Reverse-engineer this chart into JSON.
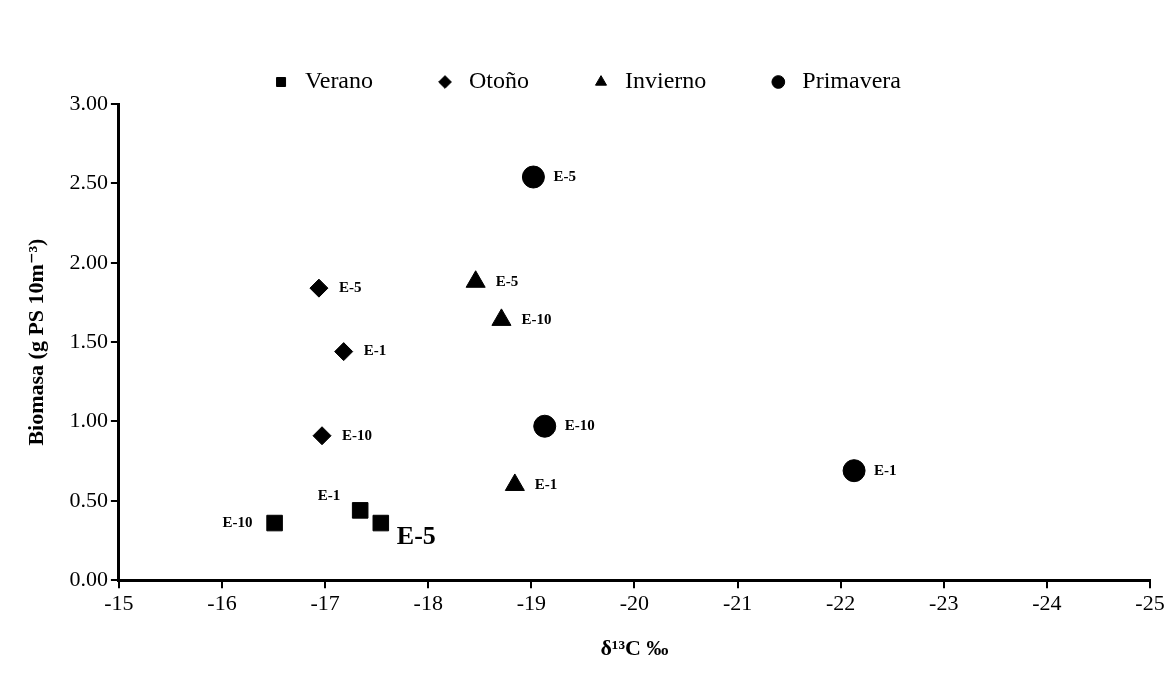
{
  "chart_data": {
    "type": "scatter",
    "xlabel": "δ¹³C ‰",
    "ylabel": "Biomasa (g PS 10m⁻³)",
    "series": [
      {
        "name": "Verano",
        "color": "#000000",
        "marker": "square",
        "x": [
          -16.51,
          -17.34,
          -17.54
        ],
        "values": [
          0.36,
          0.44,
          0.36
        ],
        "value_labels": [
          "E-10",
          "E-1",
          "E-5"
        ]
      },
      {
        "name": "Otoño",
        "color": "#000000",
        "marker": "diamond",
        "x": [
          -16.94,
          -17.18,
          -16.97
        ],
        "values": [
          1.84,
          1.44,
          0.91
        ],
        "value_labels": [
          "E-5",
          "E-1",
          "E-10"
        ]
      },
      {
        "name": "Invierno",
        "color": "#000000",
        "marker": "triangle",
        "x": [
          -18.46,
          -18.71,
          -18.84
        ],
        "values": [
          1.88,
          1.64,
          0.6
        ],
        "value_labels": [
          "E-5",
          "E-10",
          "E-1"
        ]
      },
      {
        "name": "Primavera",
        "color": "#000000",
        "marker": "circle",
        "x": [
          -19.02,
          -19.13,
          -22.13
        ],
        "values": [
          2.54,
          0.97,
          0.69
        ],
        "value_labels": [
          "E-5",
          "E-10",
          "E-1"
        ]
      }
    ],
    "xlim": [
      -15,
      -25
    ],
    "xticks": [
      -15,
      -16,
      -17,
      -18,
      -19,
      -20,
      -21,
      -22,
      -23,
      -24,
      -25
    ],
    "ylim": [
      0,
      3
    ],
    "yticks": [
      {
        "value": 0,
        "label": "0.00"
      },
      {
        "value": 0.5,
        "label": "0.50"
      },
      {
        "value": 1,
        "label": "1.00"
      },
      {
        "value": 1.5,
        "label": "1.50"
      },
      {
        "value": 2,
        "label": "2.00"
      },
      {
        "value": 2.5,
        "label": "2.50"
      },
      {
        "value": 3,
        "label": "3.00"
      }
    ],
    "grid": false,
    "legend": "top"
  }
}
